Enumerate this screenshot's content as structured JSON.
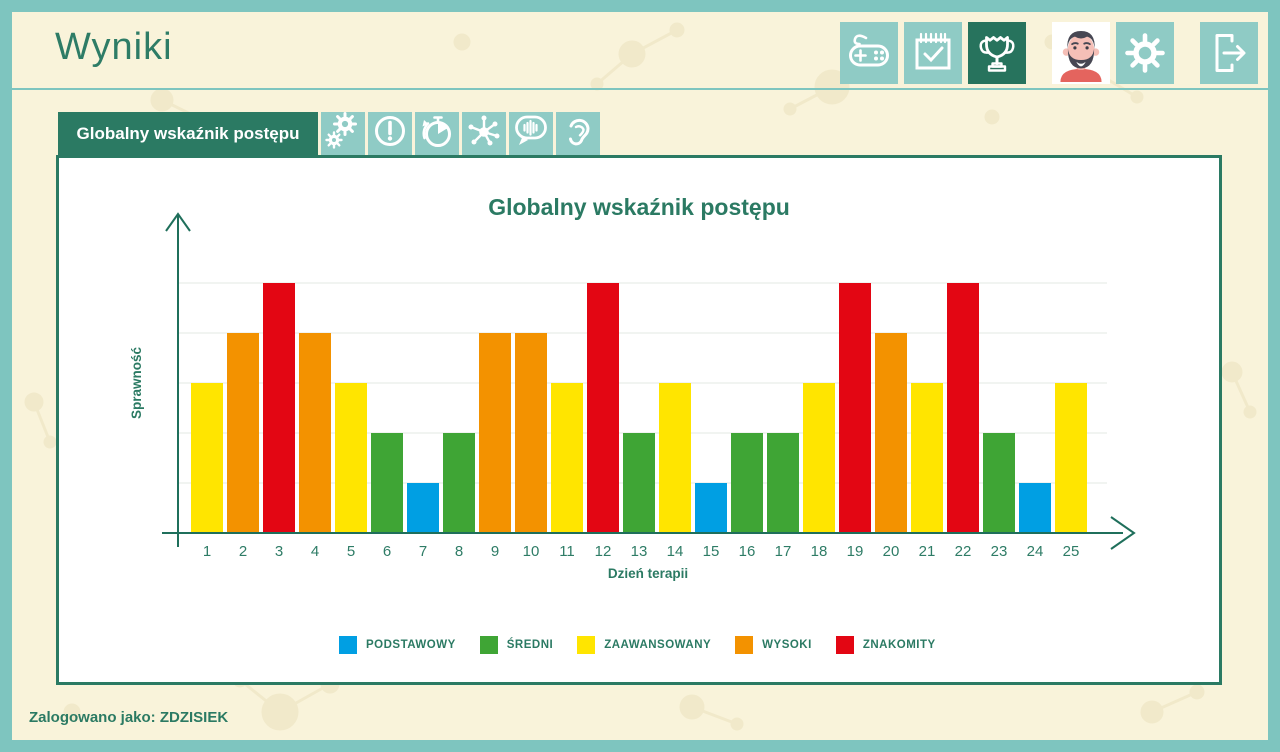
{
  "header": {
    "title": "Wyniki",
    "buttons": [
      {
        "icon": "gamepad-icon",
        "active": false
      },
      {
        "icon": "calendar-check-icon",
        "active": false
      },
      {
        "icon": "trophy-icon",
        "active": true
      },
      {
        "icon": "avatar",
        "active": false
      },
      {
        "icon": "gear-icon",
        "active": false
      },
      {
        "icon": "logout-icon",
        "active": false
      }
    ]
  },
  "tabs": {
    "active_label": "Globalny wskaźnik postępu",
    "icon_tabs": [
      "gears-icon",
      "alert-icon",
      "timer-icon",
      "network-icon",
      "speech-sound-icon",
      "ear-icon"
    ]
  },
  "chart_data": {
    "type": "bar",
    "title": "Globalny wskaźnik postępu",
    "xlabel": "Dzień terapii",
    "ylabel": "Sprawność",
    "categories": [
      1,
      2,
      3,
      4,
      5,
      6,
      7,
      8,
      9,
      10,
      11,
      12,
      13,
      14,
      15,
      16,
      17,
      18,
      19,
      20,
      21,
      22,
      23,
      24,
      25
    ],
    "values": [
      3,
      4,
      5,
      4,
      3,
      2,
      1,
      2,
      4,
      4,
      3,
      5,
      2,
      3,
      1,
      2,
      2,
      3,
      5,
      4,
      3,
      5,
      2,
      1,
      3
    ],
    "ylim": [
      0,
      5.5
    ],
    "grid": true,
    "legend_position": "bottom",
    "legend": [
      {
        "value": 1,
        "label": "PODSTAWOWY",
        "color": "#009fe3"
      },
      {
        "value": 2,
        "label": "ŚREDNI",
        "color": "#3fa535"
      },
      {
        "value": 3,
        "label": "ZAAWANSOWANY",
        "color": "#ffe500"
      },
      {
        "value": 4,
        "label": "WYSOKI",
        "color": "#f39200"
      },
      {
        "value": 5,
        "label": "ZNAKOMITY",
        "color": "#e30613"
      }
    ]
  },
  "footer": {
    "logged_in_as": "Zalogowano jako: ZDZISIEK"
  },
  "colors": {
    "frame_teal": "#7ec5bf",
    "background_cream": "#f9f3da",
    "dark_green": "#2b7a63",
    "button_teal": "#8fcbc5"
  }
}
